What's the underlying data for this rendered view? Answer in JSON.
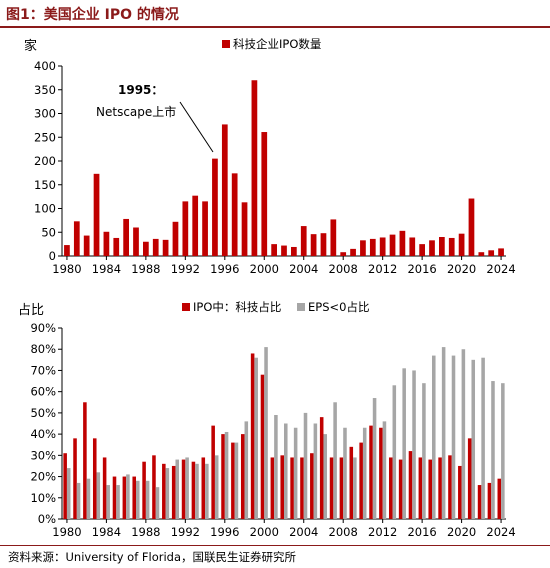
{
  "figure": {
    "title": "图1：美国企业 IPO 的情况",
    "source": "资料来源：University of Florida，国联民生证券研究所"
  },
  "colors": {
    "red": "#c00000",
    "gray": "#a6a6a6",
    "title": "#8b1a1a"
  },
  "chart_data": [
    {
      "type": "bar",
      "title": "",
      "ylabel": "家",
      "xlabel": "",
      "ylim": [
        0,
        400
      ],
      "yticks": [
        0,
        50,
        100,
        150,
        200,
        250,
        300,
        350,
        400
      ],
      "xtick_labels": [
        "1980",
        "1984",
        "1988",
        "1992",
        "1996",
        "2000",
        "2004",
        "2008",
        "2012",
        "2016",
        "2020",
        "2024"
      ],
      "legend_position": "top-center",
      "x": [
        1980,
        1981,
        1982,
        1983,
        1984,
        1985,
        1986,
        1987,
        1988,
        1989,
        1990,
        1991,
        1992,
        1993,
        1994,
        1995,
        1996,
        1997,
        1998,
        1999,
        2000,
        2001,
        2002,
        2003,
        2004,
        2005,
        2006,
        2007,
        2008,
        2009,
        2010,
        2011,
        2012,
        2013,
        2014,
        2015,
        2016,
        2017,
        2018,
        2019,
        2020,
        2021,
        2022,
        2023,
        2024
      ],
      "series": [
        {
          "name": "科技企业IPO数量",
          "color": "#c00000",
          "values": [
            23,
            73,
            43,
            173,
            51,
            38,
            78,
            60,
            30,
            36,
            34,
            72,
            115,
            127,
            115,
            205,
            277,
            174,
            113,
            370,
            261,
            25,
            22,
            19,
            63,
            46,
            48,
            77,
            8,
            15,
            33,
            36,
            39,
            45,
            53,
            39,
            25,
            33,
            40,
            38,
            47,
            121,
            8,
            12,
            16
          ]
        }
      ],
      "annotations": [
        {
          "text_line1": "1995：",
          "text_line2": "Netscape上市",
          "points_to_x": 1995
        }
      ]
    },
    {
      "type": "bar",
      "title": "",
      "ylabel": "占比",
      "xlabel": "",
      "ylim": [
        0,
        90
      ],
      "yticks": [
        0,
        10,
        20,
        30,
        40,
        50,
        60,
        70,
        80,
        90
      ],
      "ytick_suffix": "%",
      "xtick_labels": [
        "1980",
        "1984",
        "1988",
        "1992",
        "1996",
        "2000",
        "2004",
        "2008",
        "2012",
        "2016",
        "2020",
        "2024"
      ],
      "legend_position": "top-center",
      "x": [
        1980,
        1981,
        1982,
        1983,
        1984,
        1985,
        1986,
        1987,
        1988,
        1989,
        1990,
        1991,
        1992,
        1993,
        1994,
        1995,
        1996,
        1997,
        1998,
        1999,
        2000,
        2001,
        2002,
        2003,
        2004,
        2005,
        2006,
        2007,
        2008,
        2009,
        2010,
        2011,
        2012,
        2013,
        2014,
        2015,
        2016,
        2017,
        2018,
        2019,
        2020,
        2021,
        2022,
        2023,
        2024
      ],
      "series": [
        {
          "name": "IPO中：科技占比",
          "color": "#c00000",
          "values": [
            31,
            38,
            55,
            38,
            29,
            20,
            20,
            20,
            27,
            30,
            26,
            25,
            28,
            27,
            29,
            44,
            40,
            36,
            40,
            78,
            68,
            29,
            30,
            29,
            29,
            31,
            48,
            29,
            29,
            34,
            36,
            44,
            43,
            29,
            28,
            32,
            29,
            28,
            29,
            30,
            25,
            38,
            16,
            17,
            19
          ]
        },
        {
          "name": "EPS<0占比",
          "color": "#a6a6a6",
          "values": [
            24,
            17,
            19,
            22,
            16,
            16,
            21,
            18,
            18,
            15,
            24,
            28,
            29,
            26,
            26,
            30,
            41,
            36,
            46,
            76,
            81,
            49,
            45,
            43,
            50,
            45,
            40,
            55,
            43,
            29,
            43,
            57,
            46,
            63,
            71,
            70,
            64,
            77,
            81,
            77,
            80,
            75,
            76,
            65,
            64
          ]
        }
      ]
    }
  ]
}
